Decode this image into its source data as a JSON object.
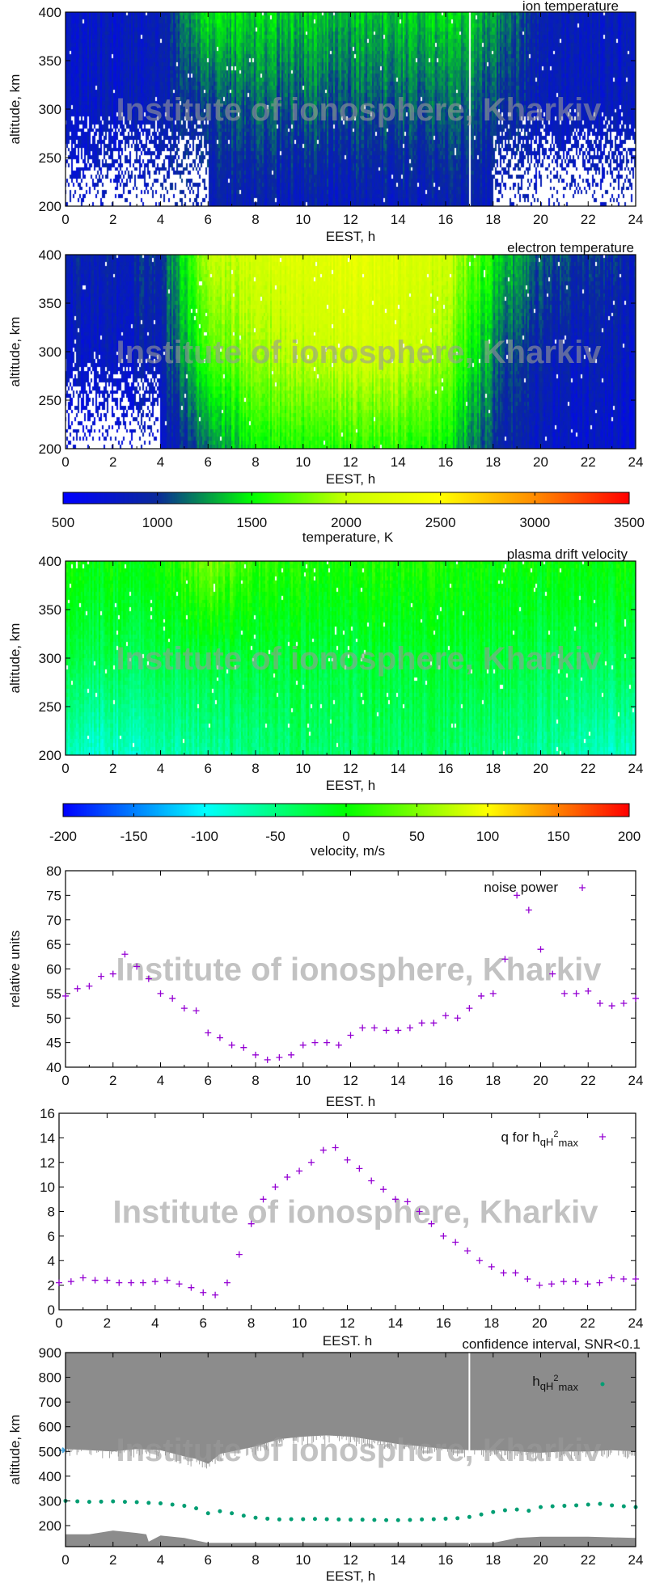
{
  "watermark": "Institute of ionosphere, Kharkiv",
  "chart_data": [
    {
      "id": "ion-temperature",
      "type": "heatmap",
      "title": "ion temperature",
      "xlabel": "EEST, h",
      "ylabel": "altitude, km",
      "xlim": [
        0,
        24
      ],
      "ylim": [
        200,
        400
      ],
      "xticks": [
        0,
        2,
        4,
        6,
        8,
        10,
        12,
        14,
        16,
        18,
        20,
        22,
        24
      ],
      "yticks": [
        200,
        250,
        300,
        350,
        400
      ],
      "grid_hours": [
        0,
        2,
        4,
        6,
        8,
        10,
        12,
        14,
        16,
        18,
        20,
        22,
        24
      ],
      "grid_altitudes": [
        200,
        300,
        400
      ],
      "values_K": [
        [
          800,
          null,
          null,
          900,
          850,
          850,
          850,
          850,
          850,
          850,
          null,
          null,
          null
        ],
        [
          800,
          800,
          850,
          1050,
          1100,
          1100,
          1100,
          1100,
          1100,
          1050,
          850,
          850,
          800
        ],
        [
          800,
          800,
          850,
          1500,
          1400,
          1400,
          1350,
          1400,
          1400,
          1300,
          900,
          850,
          800
        ]
      ],
      "colorbar": "temperature"
    },
    {
      "id": "electron-temperature",
      "type": "heatmap",
      "title": "electron temperature",
      "xlabel": "EEST, h",
      "ylabel": "altitude, km",
      "xlim": [
        0,
        24
      ],
      "ylim": [
        200,
        400
      ],
      "xticks": [
        0,
        2,
        4,
        6,
        8,
        10,
        12,
        14,
        16,
        18,
        20,
        22,
        24
      ],
      "yticks": [
        200,
        250,
        300,
        350,
        400
      ],
      "grid_hours": [
        0,
        2,
        4,
        6,
        8,
        10,
        12,
        14,
        16,
        18,
        20,
        22,
        24
      ],
      "grid_altitudes": [
        200,
        300,
        400
      ],
      "values_K": [
        [
          700,
          null,
          750,
          1200,
          1500,
          1550,
          1600,
          1600,
          1500,
          1000,
          800,
          750,
          700
        ],
        [
          800,
          800,
          900,
          1700,
          1900,
          2000,
          2100,
          2100,
          1900,
          1200,
          900,
          850,
          800
        ],
        [
          900,
          900,
          1000,
          2000,
          2100,
          2200,
          2300,
          2200,
          2100,
          1500,
          1100,
          1000,
          900
        ]
      ],
      "colorbar": "temperature"
    },
    {
      "id": "temperature-colorbar",
      "type": "colorbar",
      "label": "temperature, K",
      "range": [
        500,
        3500
      ],
      "ticks": [
        500,
        1000,
        1500,
        2000,
        2500,
        3000,
        3500
      ],
      "colors": [
        "#0000ff",
        "#0a2a9a",
        "#00ff00",
        "#c8ff00",
        "#ffff00",
        "#ff8c00",
        "#ff0000"
      ]
    },
    {
      "id": "plasma-drift-velocity",
      "type": "heatmap",
      "title": "plasma drift velocity",
      "xlabel": "EEST, h",
      "ylabel": "altitude, km",
      "xlim": [
        0,
        24
      ],
      "ylim": [
        200,
        400
      ],
      "xticks": [
        0,
        2,
        4,
        6,
        8,
        10,
        12,
        14,
        16,
        18,
        20,
        22,
        24
      ],
      "yticks": [
        200,
        250,
        300,
        350,
        400
      ],
      "grid_hours": [
        0,
        2,
        4,
        6,
        8,
        10,
        12,
        14,
        16,
        18,
        20,
        22,
        24
      ],
      "grid_altitudes": [
        200,
        300,
        400
      ],
      "values_m_s": [
        [
          -80,
          -80,
          -70,
          -60,
          -50,
          -40,
          -40,
          -40,
          -40,
          -50,
          -60,
          -70,
          -80
        ],
        [
          -30,
          -30,
          -30,
          -20,
          -20,
          -20,
          -20,
          -20,
          -20,
          -20,
          -30,
          -30,
          -30
        ],
        [
          0,
          0,
          0,
          50,
          20,
          10,
          10,
          10,
          10,
          0,
          0,
          0,
          0
        ]
      ],
      "colorbar": "velocity"
    },
    {
      "id": "velocity-colorbar",
      "type": "colorbar",
      "label": "velocity, m/s",
      "range": [
        -200,
        200
      ],
      "ticks": [
        -200,
        -150,
        -100,
        -50,
        0,
        50,
        100,
        150,
        200
      ],
      "colors": [
        "#0000ff",
        "#00ffff",
        "#00ff00",
        "#ffff00",
        "#ff0000"
      ]
    },
    {
      "id": "noise-power",
      "type": "scatter",
      "xlabel": "EEST. h",
      "ylabel": "relative units",
      "xlim": [
        0,
        24
      ],
      "ylim": [
        40,
        80
      ],
      "xticks": [
        0,
        2,
        4,
        6,
        8,
        10,
        12,
        14,
        16,
        18,
        20,
        22,
        24
      ],
      "yticks": [
        40,
        45,
        50,
        55,
        60,
        65,
        70,
        75,
        80
      ],
      "legend": "noise power",
      "legend_placement": "top-right",
      "color": "#9400d3",
      "marker": "+",
      "x": [
        0,
        0.5,
        1,
        1.5,
        2,
        2.5,
        3,
        3.5,
        4,
        4.5,
        5,
        5.5,
        6,
        6.5,
        7,
        7.5,
        8,
        8.5,
        9,
        9.5,
        10,
        10.5,
        11,
        11.5,
        12,
        12.5,
        13,
        13.5,
        14,
        14.5,
        15,
        15.5,
        16,
        16.5,
        17,
        17.5,
        18,
        18.5,
        19,
        19.5,
        20,
        20.5,
        21,
        21.5,
        22,
        22.5,
        23,
        23.5,
        24
      ],
      "y": [
        54.5,
        56,
        56.5,
        58.5,
        59,
        63,
        60.5,
        58,
        55,
        54,
        52,
        51.5,
        47,
        46,
        44.5,
        44,
        42.5,
        41.5,
        42,
        42.5,
        44.5,
        45,
        45,
        44.5,
        46.5,
        48,
        48,
        47.5,
        47.5,
        48,
        49,
        49,
        50.5,
        50,
        52,
        54.5,
        55,
        62,
        75,
        72,
        64,
        59,
        55,
        55,
        55.5,
        53,
        52.5,
        53,
        54
      ]
    },
    {
      "id": "q-for-hqh2max",
      "type": "scatter",
      "xlabel": "EEST. h",
      "ylabel": "",
      "xlim": [
        0,
        24
      ],
      "ylim": [
        0,
        16
      ],
      "xticks": [
        0,
        2,
        4,
        6,
        8,
        10,
        12,
        14,
        16,
        18,
        20,
        22,
        24
      ],
      "yticks": [
        0,
        2,
        4,
        6,
        8,
        10,
        12,
        14,
        16
      ],
      "legend": {
        "base": "q for h",
        "sub": "qH",
        "sup": "2",
        "sub2": "max"
      },
      "legend_placement": "top-right",
      "color": "#9400d3",
      "marker": "+",
      "x": [
        0,
        0.5,
        1,
        1.5,
        2,
        2.5,
        3,
        3.5,
        4,
        4.5,
        5,
        5.5,
        6,
        6.5,
        7,
        7.5,
        8,
        8.5,
        9,
        9.5,
        10,
        10.5,
        11,
        11.5,
        12,
        12.5,
        13,
        13.5,
        14,
        14.5,
        15,
        15.5,
        16,
        16.5,
        17,
        17.5,
        18,
        18.5,
        19,
        19.5,
        20,
        20.5,
        21,
        21.5,
        22,
        22.5,
        23,
        23.5,
        24
      ],
      "y": [
        2.2,
        2.3,
        2.6,
        2.4,
        2.4,
        2.2,
        2.2,
        2.2,
        2.3,
        2.4,
        2.1,
        1.8,
        1.4,
        1.2,
        2.2,
        4.5,
        7,
        9,
        10,
        10.8,
        11.3,
        12,
        13,
        13.2,
        12.2,
        11.5,
        10.5,
        9.8,
        9,
        8.8,
        8,
        7,
        6,
        5.5,
        4.8,
        4,
        3.5,
        3,
        3,
        2.5,
        2,
        2.1,
        2.3,
        2.3,
        2.1,
        2.2,
        2.6,
        2.5,
        2.5
      ]
    },
    {
      "id": "confidence-interval",
      "type": "area",
      "title": "confidence interval, SNR<0.1",
      "xlabel": "EEST, h",
      "ylabel": "altitude, km",
      "xlim": [
        0,
        24
      ],
      "ylim": [
        115,
        900
      ],
      "xticks": [
        0,
        2,
        4,
        6,
        8,
        10,
        12,
        14,
        16,
        18,
        20,
        22,
        24
      ],
      "yticks": [
        200,
        300,
        400,
        500,
        600,
        700,
        800,
        900
      ],
      "area_color": "#8c8c8c",
      "upper_band_lower_edge_km": {
        "x": [
          0,
          1,
          2,
          3,
          4,
          5,
          5.5,
          6,
          6.5,
          7,
          8,
          9,
          10,
          11,
          12,
          13,
          14,
          15,
          16,
          17,
          18,
          19,
          20,
          21,
          22,
          23,
          24
        ],
        "y": [
          510,
          505,
          500,
          510,
          505,
          480,
          470,
          450,
          490,
          500,
          520,
          550,
          560,
          565,
          560,
          545,
          530,
          520,
          510,
          505,
          505,
          500,
          495,
          500,
          500,
          505,
          500
        ]
      },
      "lower_band_upper_edge_km": {
        "x": [
          0,
          1,
          2,
          3,
          3.4,
          3.5,
          4,
          5,
          5.5,
          6,
          8,
          12,
          16,
          18,
          18.5,
          19,
          20,
          22,
          24
        ],
        "y": [
          165,
          165,
          180,
          170,
          165,
          135,
          160,
          150,
          140,
          130,
          130,
          130,
          130,
          130,
          140,
          150,
          155,
          155,
          150
        ]
      },
      "data_gap_hour": 17,
      "points": {
        "legend": {
          "base": "h",
          "sub": "qH",
          "sup": "2",
          "sub2": "max"
        },
        "color": "#009e73",
        "x": [
          0,
          0.5,
          1,
          1.5,
          2,
          2.5,
          3,
          3.5,
          4,
          4.5,
          5,
          5.5,
          6,
          6.5,
          7,
          7.5,
          8,
          8.5,
          9,
          9.5,
          10,
          10.5,
          11,
          11.5,
          12,
          12.5,
          13,
          13.5,
          14,
          14.5,
          15,
          15.5,
          16,
          16.5,
          17,
          17.5,
          18,
          18.5,
          19,
          19.5,
          20,
          20.5,
          21,
          21.5,
          22,
          22.5,
          23,
          23.5,
          24
        ],
        "y": [
          300,
          298,
          296,
          297,
          298,
          296,
          295,
          292,
          290,
          285,
          280,
          270,
          250,
          258,
          250,
          240,
          232,
          228,
          225,
          226,
          226,
          227,
          226,
          225,
          224,
          224,
          223,
          222,
          222,
          223,
          225,
          226,
          228,
          230,
          235,
          245,
          255,
          262,
          265,
          260,
          275,
          278,
          280,
          282,
          285,
          288,
          282,
          278,
          275
        ]
      }
    }
  ]
}
